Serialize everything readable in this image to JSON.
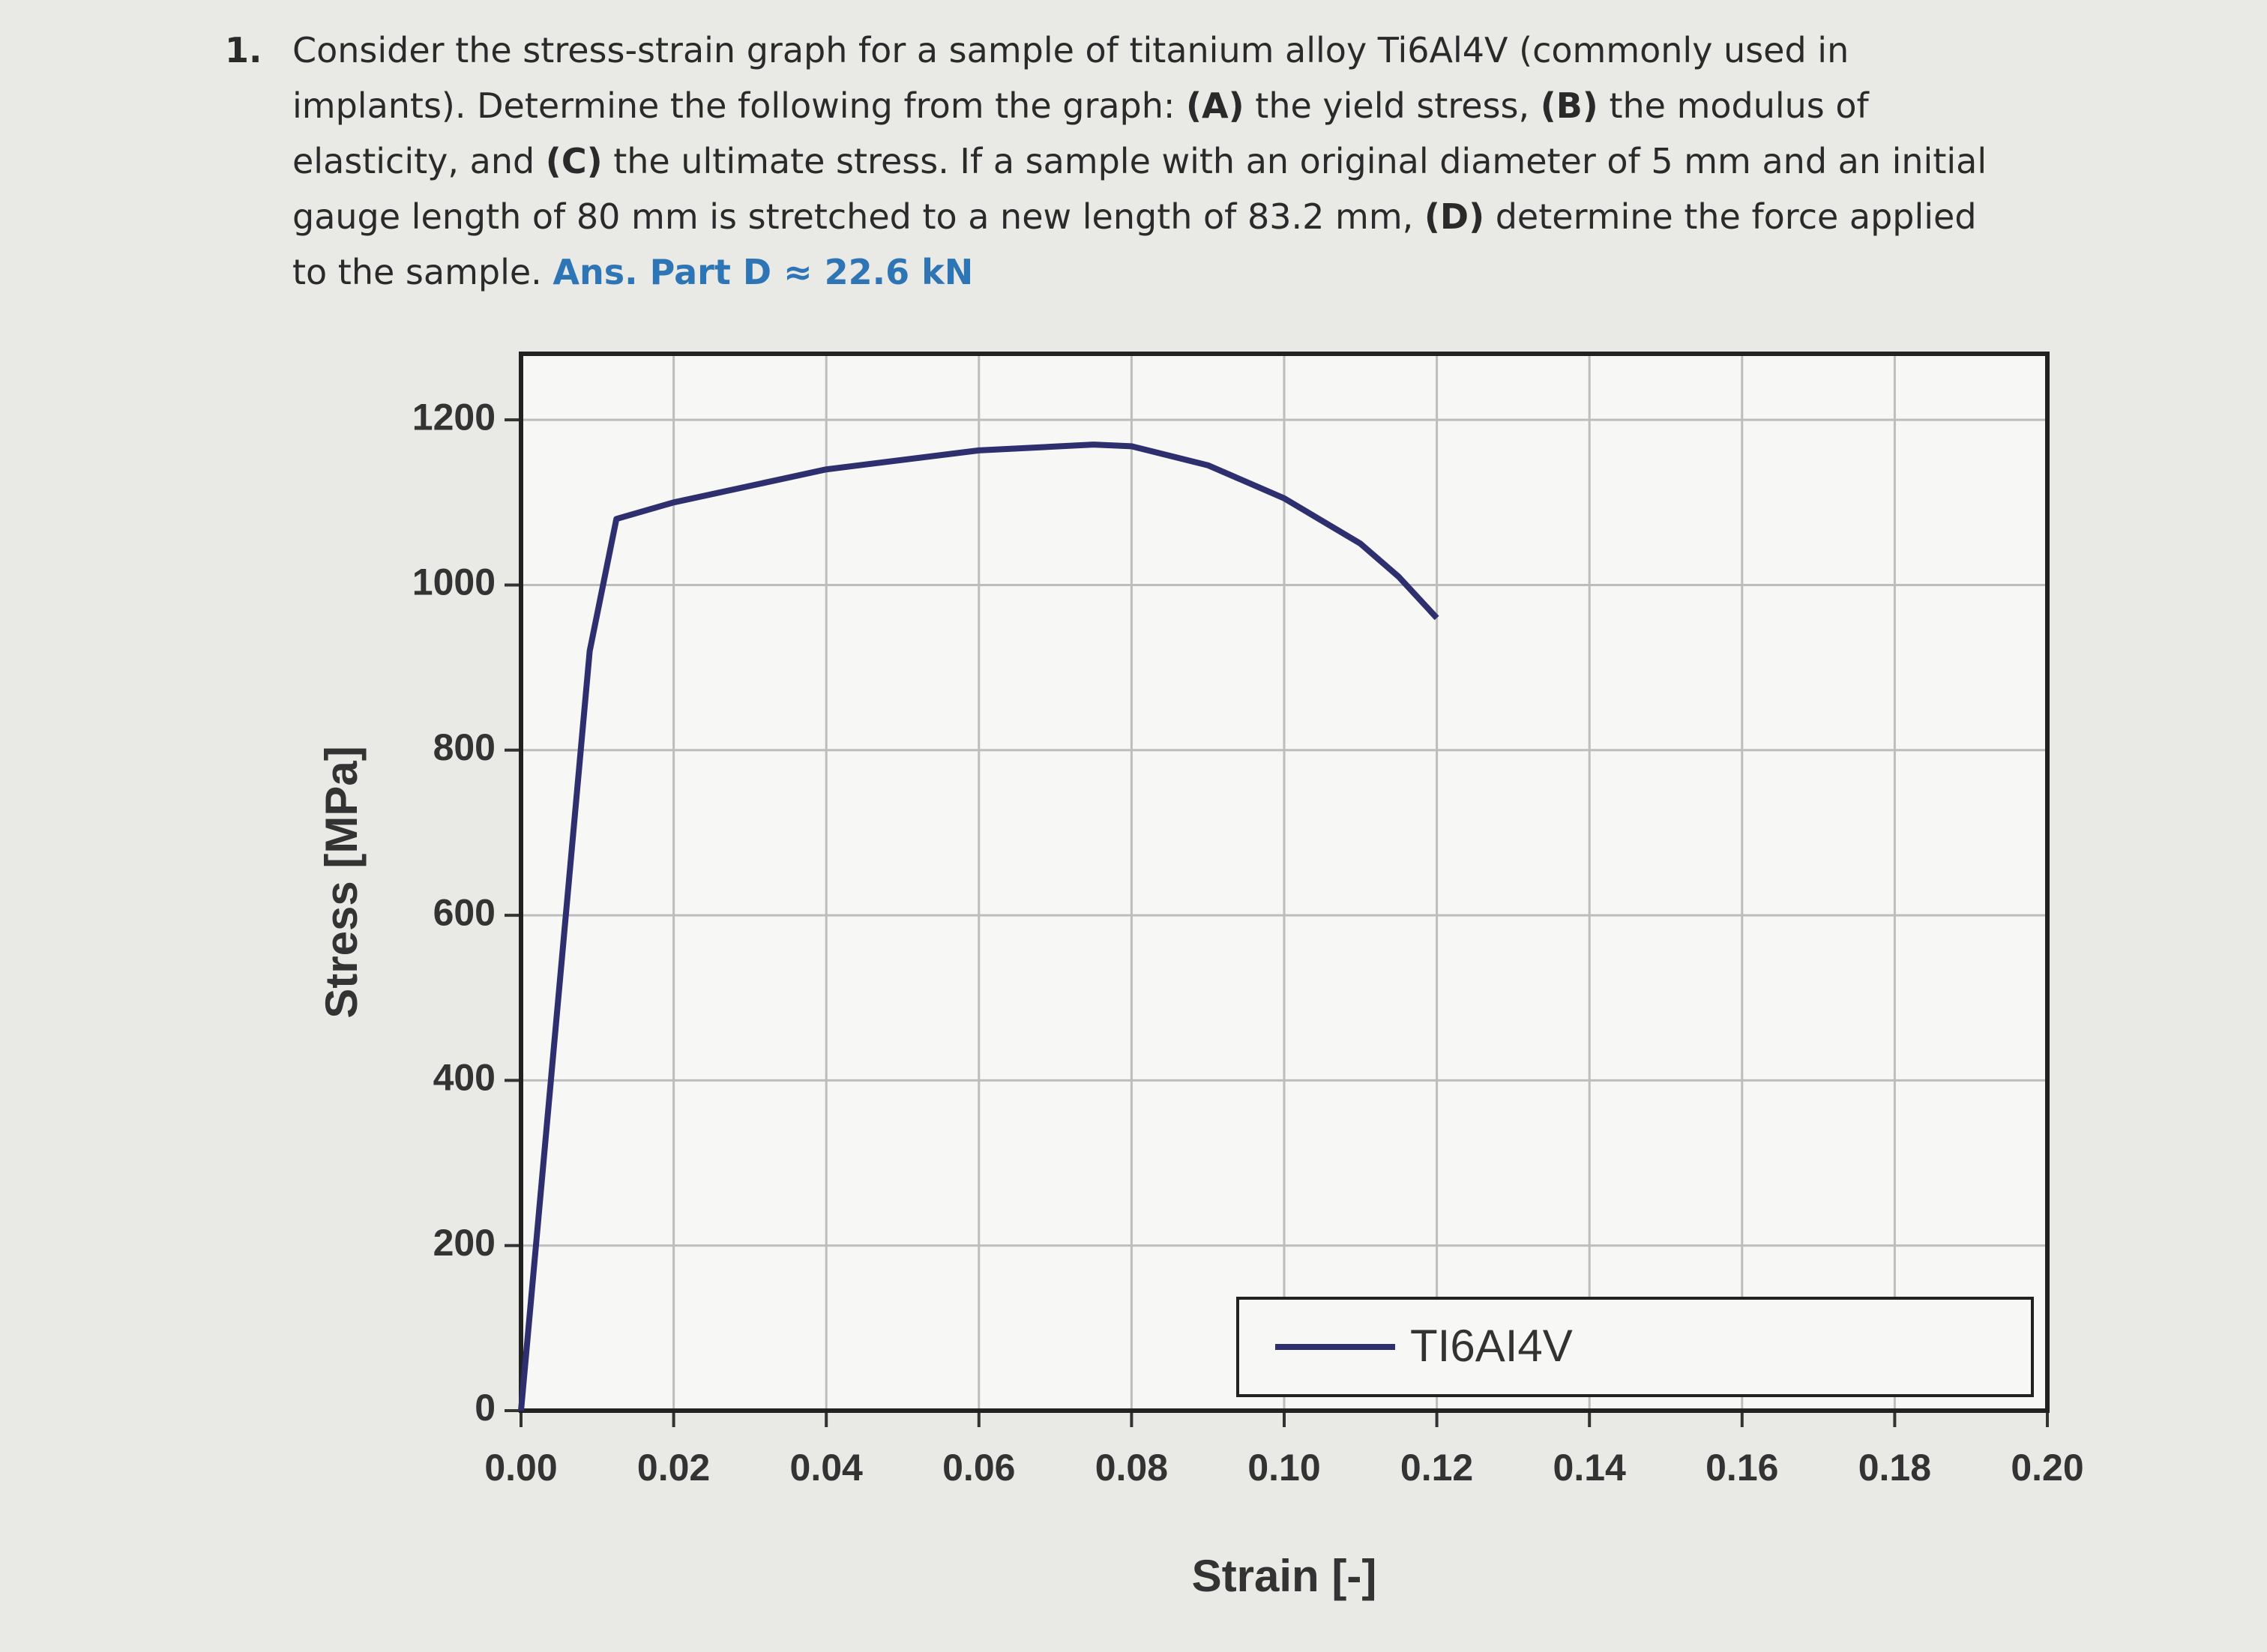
{
  "question": {
    "number": "1.",
    "runs": [
      {
        "text": "Consider the stress-strain graph for a sample of titanium alloy Ti6Al4V (commonly used in implants). Determine the following from the graph: ",
        "style": "normal"
      },
      {
        "text": "(A)",
        "style": "bold"
      },
      {
        "text": " the yield stress, ",
        "style": "normal"
      },
      {
        "text": "(B)",
        "style": "bold"
      },
      {
        "text": " the modulus of elasticity, and ",
        "style": "normal"
      },
      {
        "text": "(C)",
        "style": "bold"
      },
      {
        "text": " the ultimate stress. If a sample with an original diameter of 5 mm and an initial gauge length of 80 mm is stretched to a new length of 83.2 mm, ",
        "style": "normal"
      },
      {
        "text": "(D)",
        "style": "bold"
      },
      {
        "text": " determine the force applied to the sample. ",
        "style": "normal"
      },
      {
        "text": "Ans. Part D ≈ 22.6 kN",
        "style": "answer"
      }
    ]
  },
  "chart_data": {
    "type": "line",
    "x_label": "Strain [-]",
    "y_label": "Stress [MPa]",
    "x": [
      0,
      0.009,
      0.0125,
      0.02,
      0.04,
      0.06,
      0.075,
      0.08,
      0.09,
      0.1,
      0.11,
      0.115,
      0.12
    ],
    "series": [
      {
        "name": "TI6AI4V",
        "color": "#2d2f6e",
        "values": [
          0,
          920,
          1080,
          1100,
          1140,
          1163,
          1170,
          1168,
          1145,
          1105,
          1050,
          1010,
          960
        ]
      }
    ],
    "xlim": [
      0,
      0.2
    ],
    "xticks": [
      {
        "value": 0,
        "label": "0.00"
      },
      0.02,
      0.04,
      0.06,
      0.08,
      {
        "value": 0.1,
        "label": "0.10"
      },
      0.12,
      0.14,
      0.16,
      0.18,
      {
        "value": 0.2,
        "label": "0.20"
      }
    ],
    "ylim": [
      0,
      1280
    ],
    "yticks": [
      0,
      200,
      400,
      600,
      800,
      1000,
      1200
    ],
    "grid": true,
    "legend": "lower right"
  }
}
